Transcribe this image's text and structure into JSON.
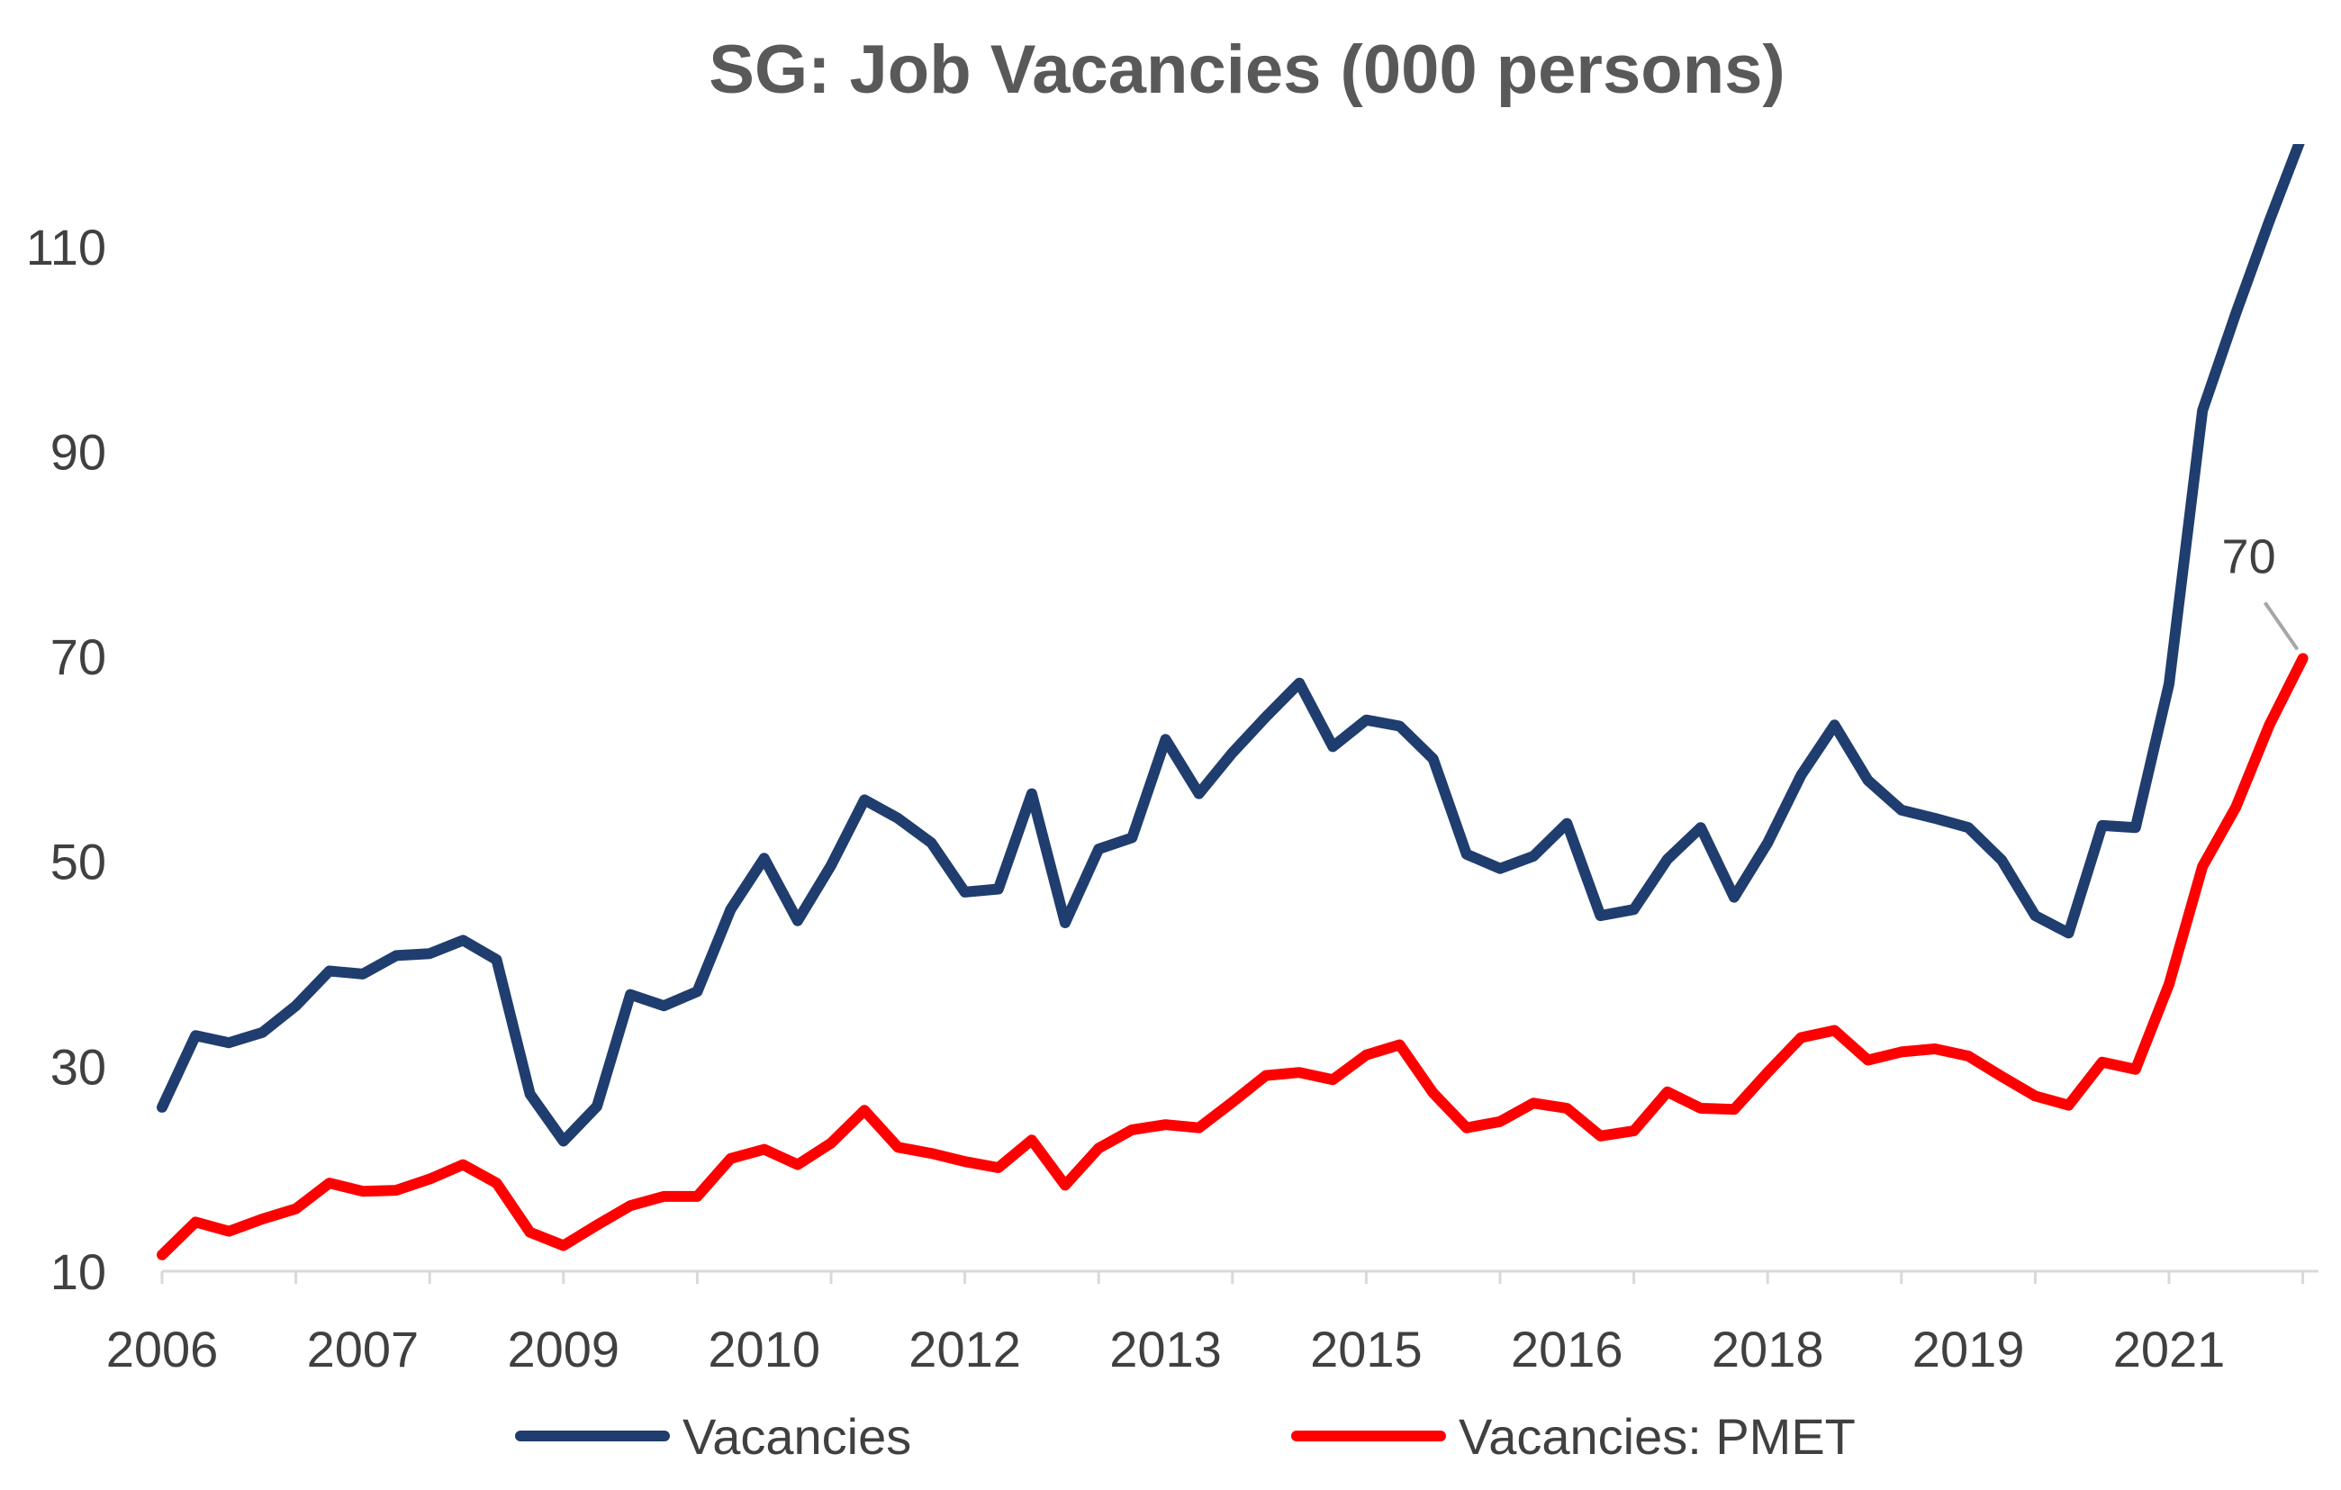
{
  "chart_data": {
    "type": "line",
    "title": "SG: Job Vacancies (000 persons)",
    "xlabel": "",
    "ylabel": "",
    "x_tick_labels": [
      "2006",
      "2007",
      "2009",
      "2010",
      "2012",
      "2013",
      "2015",
      "2016",
      "2018",
      "2019",
      "2021"
    ],
    "y_tick_labels": [
      "110",
      "90",
      "70",
      "50",
      "30",
      "10"
    ],
    "y_tick_values": [
      110,
      90,
      70,
      50,
      30,
      10
    ],
    "ylim": [
      10,
      120
    ],
    "grid": false,
    "legend_position": "bottom",
    "annotation": {
      "text": "70"
    },
    "series": [
      {
        "name": "Vacancies",
        "color": "#1F3D6E",
        "values": [
          26,
          33,
          32.3,
          33.3,
          35.9,
          39.3,
          39,
          40.8,
          41,
          42.3,
          40.4,
          27.3,
          22.7,
          26.1,
          37,
          35.9,
          37.3,
          45.3,
          50.3,
          44.2,
          49.6,
          56,
          54.2,
          51.8,
          47,
          47.3,
          56.6,
          44,
          51.2,
          52.3,
          61.9,
          56.6,
          60.6,
          64.1,
          67.4,
          61.2,
          63.8,
          63.2,
          60,
          50.7,
          49.3,
          50.5,
          53.7,
          44.7,
          45.3,
          50.2,
          53.3,
          46.5,
          51.8,
          58.4,
          63.3,
          57.9,
          55,
          54.2,
          53.3,
          50.1,
          44.7,
          43,
          53.5,
          53.3,
          67.3,
          94,
          103.5,
          112.5,
          121
        ]
      },
      {
        "name": "Vacancies: PMET",
        "color": "#FF0000",
        "values": [
          11.6,
          14.8,
          13.9,
          15.1,
          16.1,
          18.6,
          17.8,
          17.9,
          19,
          20.4,
          18.6,
          13.8,
          12.5,
          14.5,
          16.4,
          17.3,
          17.3,
          21,
          21.9,
          20.4,
          22.5,
          25.7,
          22.1,
          21.5,
          20.7,
          20.1,
          22.8,
          18.4,
          22,
          23.8,
          24.3,
          24,
          26.5,
          29.1,
          29.4,
          28.7,
          31.1,
          32.1,
          27.4,
          24,
          24.6,
          26.4,
          25.9,
          23.2,
          23.7,
          27.5,
          25.9,
          25.8,
          29.4,
          32.8,
          33.5,
          30.6,
          31.4,
          31.7,
          31,
          29,
          27.1,
          26.2,
          30.4,
          29.7,
          38,
          49.5,
          55.3,
          63.3,
          69.8
        ]
      }
    ]
  }
}
